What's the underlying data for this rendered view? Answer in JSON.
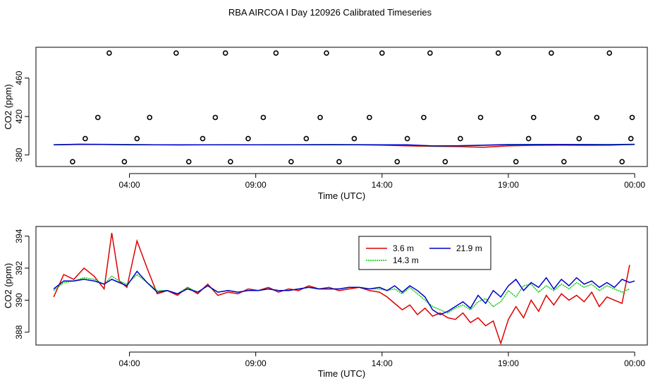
{
  "title": "RBA AIRCOA I  Day 120926  Calibrated Timeseries",
  "chart_data": [
    {
      "type": "line",
      "panel": "top",
      "title": "",
      "xlabel": "Time (UTC)",
      "ylabel": "CO2 (ppm)",
      "xlim": [
        0.3,
        24.5
      ],
      "ylim": [
        368,
        492
      ],
      "x_ticks": [
        {
          "value": 4,
          "label": "04:00"
        },
        {
          "value": 9,
          "label": "09:00"
        },
        {
          "value": 14,
          "label": "14:00"
        },
        {
          "value": 19,
          "label": "19:00"
        },
        {
          "value": 24,
          "label": "00:00"
        }
      ],
      "y_ticks": [
        {
          "value": 380,
          "label": "380"
        },
        {
          "value": 420,
          "label": "420"
        },
        {
          "value": 460,
          "label": "460"
        }
      ],
      "series": [
        {
          "name": "3.6 m",
          "color": "#dd0000",
          "x": [
            1,
            2,
            3,
            4,
            5,
            6,
            7,
            8,
            9,
            10,
            11,
            12,
            13,
            14,
            15,
            16,
            17,
            18,
            19,
            20,
            21,
            22,
            23,
            24
          ],
          "values": [
            390.5,
            391.0,
            390.9,
            390.7,
            390.5,
            390.4,
            390.5,
            390.6,
            390.5,
            390.6,
            390.6,
            390.7,
            390.6,
            390.2,
            389.5,
            389.0,
            388.8,
            388.0,
            389.5,
            390.0,
            390.2,
            390.0,
            390.1,
            391.0
          ]
        },
        {
          "name": "14.3 m",
          "color": "#00cc00",
          "x": [
            1,
            2,
            3,
            4,
            5,
            6,
            7,
            8,
            9,
            10,
            11,
            12,
            13,
            14,
            15,
            16,
            17,
            18,
            19,
            20,
            21,
            22,
            23,
            24
          ],
          "values": [
            390.7,
            391.2,
            391.1,
            390.8,
            390.6,
            390.5,
            390.6,
            390.7,
            390.6,
            390.7,
            390.7,
            390.8,
            390.7,
            390.6,
            390.4,
            389.3,
            389.4,
            390.0,
            390.5,
            390.7,
            390.8,
            390.7,
            390.6,
            390.8
          ]
        },
        {
          "name": "21.9 m",
          "color": "#0000cc",
          "x": [
            1,
            2,
            3,
            4,
            5,
            6,
            7,
            8,
            9,
            10,
            11,
            12,
            13,
            14,
            15,
            16,
            17,
            18,
            19,
            20,
            21,
            22,
            23,
            24
          ],
          "values": [
            390.6,
            391.1,
            391.0,
            390.7,
            390.5,
            390.5,
            390.5,
            390.6,
            390.6,
            390.6,
            390.7,
            390.7,
            390.7,
            390.6,
            390.5,
            389.5,
            389.6,
            390.2,
            390.8,
            391.0,
            391.0,
            390.9,
            390.8,
            391.1
          ]
        }
      ],
      "markers": {
        "name": "calibration points",
        "x": [
          1.75,
          2.25,
          2.75,
          3.2,
          3.8,
          4.3,
          4.8,
          5.85,
          6.35,
          6.9,
          7.4,
          7.8,
          8.0,
          8.7,
          9.3,
          9.8,
          10.4,
          11.0,
          11.55,
          11.8,
          12.3,
          12.9,
          13.5,
          14.0,
          14.6,
          15.0,
          15.65,
          15.9,
          16.5,
          17.1,
          17.9,
          18.6,
          19.3,
          19.8,
          20.0,
          20.7,
          21.2,
          21.8,
          22.5,
          23.0,
          23.5,
          23.85,
          23.9
        ],
        "values": [
          373,
          397,
          419,
          486,
          373,
          397,
          419,
          486,
          373,
          397,
          419,
          486,
          373,
          397,
          419,
          486,
          373,
          397,
          419,
          486,
          373,
          397,
          419,
          486,
          373,
          397,
          419,
          486,
          373,
          397,
          419,
          486,
          373,
          397,
          419,
          486,
          373,
          397,
          419,
          486,
          373,
          397,
          419
        ]
      }
    },
    {
      "type": "line",
      "panel": "bottom",
      "title": "",
      "xlabel": "Time (UTC)",
      "ylabel": "CO2 (ppm)",
      "xlim": [
        0.3,
        24.5
      ],
      "ylim": [
        387.2,
        394.6
      ],
      "x_ticks": [
        {
          "value": 4,
          "label": "04:00"
        },
        {
          "value": 9,
          "label": "09:00"
        },
        {
          "value": 14,
          "label": "14:00"
        },
        {
          "value": 19,
          "label": "19:00"
        },
        {
          "value": 24,
          "label": "00:00"
        }
      ],
      "y_ticks": [
        {
          "value": 388,
          "label": "388"
        },
        {
          "value": 390,
          "label": "390"
        },
        {
          "value": 392,
          "label": "392"
        },
        {
          "value": 394,
          "label": "394"
        }
      ],
      "legend": {
        "position": "top-center",
        "entries": [
          "3.6 m",
          "21.9 m",
          "14.3 m"
        ]
      },
      "series": [
        {
          "name": "3.6 m",
          "color": "#dd0000",
          "style": "solid",
          "x": [
            1.0,
            1.4,
            1.8,
            2.2,
            2.6,
            3.0,
            3.3,
            3.6,
            3.9,
            4.3,
            4.7,
            5.1,
            5.5,
            5.9,
            6.3,
            6.7,
            7.1,
            7.5,
            7.9,
            8.3,
            8.7,
            9.1,
            9.5,
            9.9,
            10.3,
            10.7,
            11.1,
            11.5,
            11.9,
            12.3,
            12.7,
            13.1,
            13.5,
            13.9,
            14.2,
            14.5,
            14.8,
            15.1,
            15.4,
            15.7,
            16.0,
            16.3,
            16.6,
            16.9,
            17.2,
            17.5,
            17.8,
            18.1,
            18.4,
            18.7,
            19.0,
            19.3,
            19.6,
            19.9,
            20.2,
            20.5,
            20.8,
            21.1,
            21.4,
            21.7,
            22.0,
            22.3,
            22.6,
            22.9,
            23.2,
            23.5,
            23.8
          ],
          "values": [
            390.2,
            391.6,
            391.3,
            392.0,
            391.5,
            390.7,
            394.2,
            391.2,
            390.8,
            393.7,
            392.0,
            390.4,
            390.6,
            390.3,
            390.8,
            390.4,
            391.0,
            390.3,
            390.5,
            390.4,
            390.7,
            390.6,
            390.8,
            390.5,
            390.7,
            390.6,
            390.9,
            390.7,
            390.8,
            390.6,
            390.7,
            390.8,
            390.6,
            390.5,
            390.2,
            389.8,
            389.4,
            389.7,
            389.1,
            389.5,
            389.0,
            389.2,
            388.9,
            388.8,
            389.2,
            388.6,
            388.9,
            388.4,
            388.7,
            387.3,
            388.8,
            389.6,
            388.9,
            390.0,
            389.3,
            390.3,
            389.7,
            390.4,
            390.0,
            390.3,
            389.9,
            390.5,
            389.6,
            390.2,
            390.0,
            389.8,
            392.2
          ]
        },
        {
          "name": "14.3 m",
          "color": "#00cc00",
          "style": "dotted",
          "x": [
            1.0,
            1.4,
            1.8,
            2.2,
            2.6,
            3.0,
            3.3,
            3.6,
            3.9,
            4.3,
            4.7,
            5.1,
            5.5,
            5.9,
            6.3,
            6.7,
            7.1,
            7.5,
            7.9,
            8.3,
            8.7,
            9.1,
            9.5,
            9.9,
            10.3,
            10.7,
            11.1,
            11.5,
            11.9,
            12.3,
            12.7,
            13.1,
            13.5,
            13.9,
            14.2,
            14.5,
            14.8,
            15.1,
            15.4,
            15.7,
            16.0,
            16.3,
            16.6,
            16.9,
            17.2,
            17.5,
            17.8,
            18.1,
            18.4,
            18.7,
            19.0,
            19.3,
            19.6,
            19.9,
            20.2,
            20.5,
            20.8,
            21.1,
            21.4,
            21.7,
            22.0,
            22.3,
            22.6,
            22.9,
            23.2,
            23.5,
            23.8
          ],
          "values": [
            390.6,
            391.1,
            391.2,
            391.4,
            391.3,
            391.0,
            391.5,
            391.2,
            391.0,
            391.6,
            391.1,
            390.6,
            390.6,
            390.4,
            390.8,
            390.5,
            390.9,
            390.5,
            390.6,
            390.5,
            390.6,
            390.6,
            390.7,
            390.6,
            390.6,
            390.7,
            390.8,
            390.7,
            390.7,
            390.7,
            390.8,
            390.8,
            390.7,
            390.7,
            390.6,
            390.7,
            390.4,
            390.8,
            390.4,
            390.0,
            389.6,
            389.4,
            389.2,
            389.5,
            389.7,
            389.4,
            389.9,
            390.1,
            389.6,
            389.9,
            390.6,
            390.2,
            390.9,
            391.0,
            390.5,
            390.9,
            390.6,
            391.0,
            390.7,
            391.1,
            390.8,
            391.0,
            390.6,
            390.9,
            390.7,
            390.5,
            390.7
          ]
        },
        {
          "name": "21.9 m",
          "color": "#0000cc",
          "style": "solid",
          "x": [
            1.0,
            1.4,
            1.8,
            2.2,
            2.6,
            3.0,
            3.3,
            3.6,
            3.9,
            4.3,
            4.7,
            5.1,
            5.5,
            5.9,
            6.3,
            6.7,
            7.1,
            7.5,
            7.9,
            8.3,
            8.7,
            9.1,
            9.5,
            9.9,
            10.3,
            10.7,
            11.1,
            11.5,
            11.9,
            12.3,
            12.7,
            13.1,
            13.5,
            13.9,
            14.2,
            14.5,
            14.8,
            15.1,
            15.4,
            15.7,
            16.0,
            16.3,
            16.6,
            16.9,
            17.2,
            17.5,
            17.8,
            18.1,
            18.4,
            18.7,
            19.0,
            19.3,
            19.6,
            19.9,
            20.2,
            20.5,
            20.8,
            21.1,
            21.4,
            21.7,
            22.0,
            22.3,
            22.6,
            22.9,
            23.2,
            23.5,
            23.8,
            24.0
          ],
          "values": [
            390.7,
            391.2,
            391.2,
            391.3,
            391.2,
            391.0,
            391.3,
            391.1,
            390.9,
            391.8,
            391.1,
            390.5,
            390.6,
            390.4,
            390.7,
            390.5,
            390.9,
            390.5,
            390.6,
            390.5,
            390.6,
            390.6,
            390.7,
            390.6,
            390.6,
            390.7,
            390.8,
            390.7,
            390.7,
            390.7,
            390.8,
            390.8,
            390.7,
            390.8,
            390.6,
            390.9,
            390.5,
            390.9,
            390.6,
            390.2,
            389.4,
            389.1,
            389.3,
            389.6,
            389.9,
            389.5,
            390.3,
            389.8,
            390.6,
            390.2,
            390.9,
            391.3,
            390.6,
            391.1,
            390.8,
            391.4,
            390.7,
            391.3,
            390.9,
            391.4,
            391.0,
            391.2,
            390.8,
            391.1,
            390.8,
            391.3,
            391.1,
            391.2
          ]
        }
      ]
    }
  ]
}
